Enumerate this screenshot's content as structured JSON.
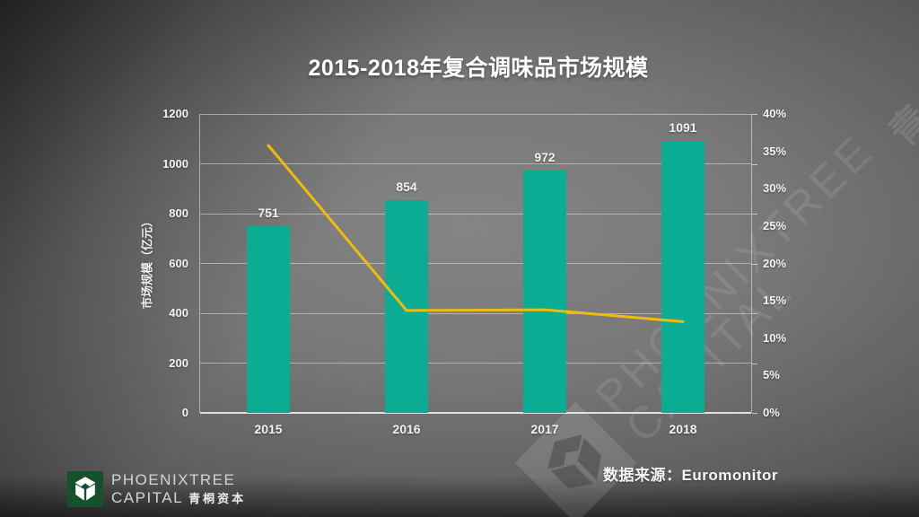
{
  "slide": {
    "title": "2015-2018年复合调味品市场规模",
    "source_note": "数据来源：Euromonitor"
  },
  "logo": {
    "line1": "PHOENIXTREE",
    "line2": "CAPITAL",
    "line2_cn": "青桐资本"
  },
  "watermark": {
    "line1": "PHOENIXTREE",
    "line2": "CAPITAL",
    "cn": "青桐资本"
  },
  "colors": {
    "bar_teal": "#0bab94",
    "line_gold": "#f0bb10",
    "logo_green": "#17502c",
    "grid_gray": "#ebebeb"
  },
  "chart_data": {
    "type": "bar",
    "title": "2015-2018年复合调味品市场规模",
    "categories": [
      "2015",
      "2016",
      "2017",
      "2018"
    ],
    "series": [
      {
        "name": "市场规模（亿元）",
        "type": "bar",
        "axis": "left",
        "values": [
          751,
          854,
          972,
          1091
        ]
      },
      {
        "name": "",
        "type": "line",
        "axis": "right",
        "values": [
          35.8,
          13.7,
          13.8,
          12.2
        ]
      }
    ],
    "bar_labels": [
      "751",
      "854",
      "972",
      "1091"
    ],
    "left_axis": {
      "title": "市场规模（亿元）",
      "min": 0,
      "max": 1200,
      "step": 200,
      "ticks": [
        "0",
        "200",
        "400",
        "600",
        "800",
        "1000",
        "1200"
      ]
    },
    "right_axis": {
      "min": 0,
      "max": 40,
      "step": 5,
      "ticks": [
        "0%",
        "5%",
        "10%",
        "15%",
        "20%",
        "25%",
        "30%",
        "35%",
        "40%"
      ]
    },
    "grid": true,
    "legend": false,
    "xlabel": "",
    "ylabel": "市场规模（亿元）"
  }
}
